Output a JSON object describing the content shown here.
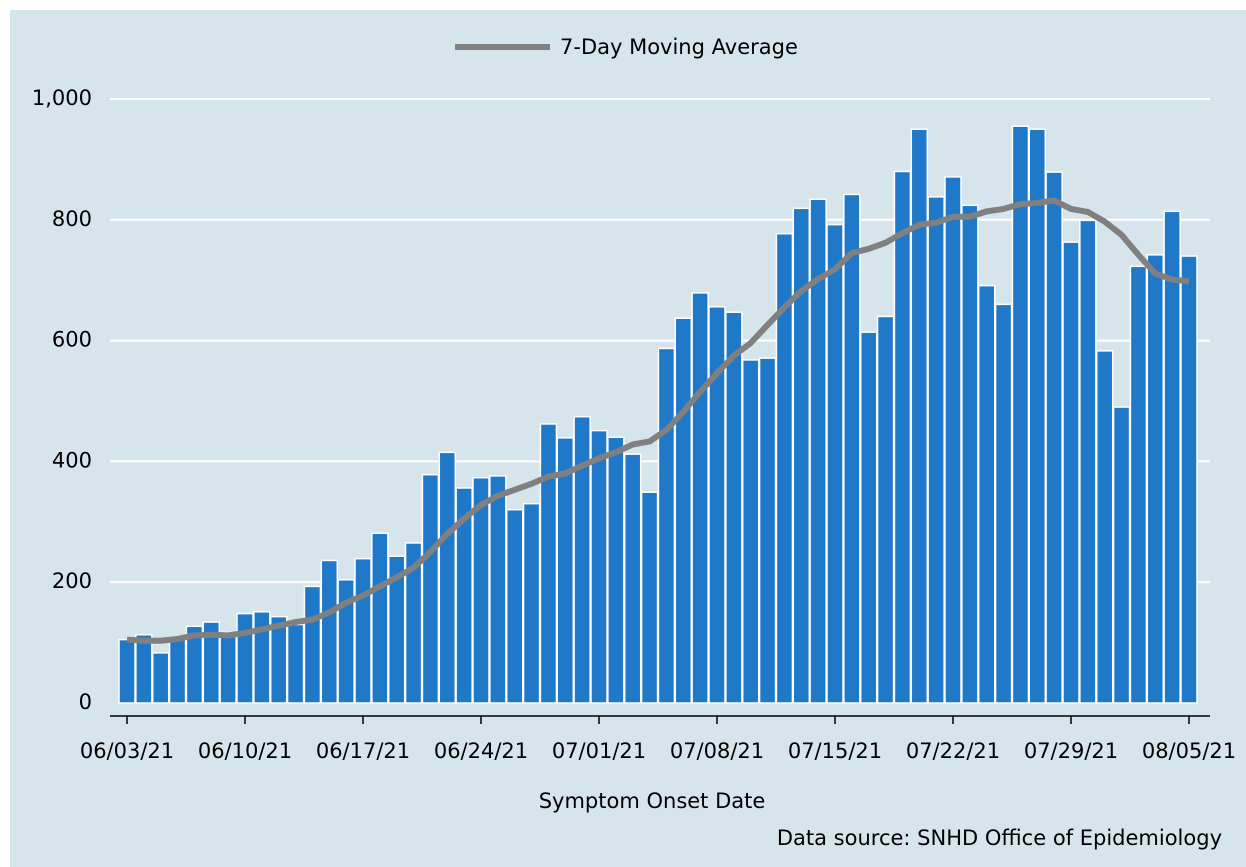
{
  "chart_data": {
    "type": "bar",
    "categories": [
      "06/03/21",
      null,
      null,
      null,
      null,
      null,
      null,
      "06/10/21",
      null,
      null,
      null,
      null,
      null,
      null,
      "06/17/21",
      null,
      null,
      null,
      null,
      null,
      null,
      "06/24/21",
      null,
      null,
      null,
      null,
      null,
      null,
      "07/01/21",
      null,
      null,
      null,
      null,
      null,
      null,
      "07/08/21",
      null,
      null,
      null,
      null,
      null,
      null,
      "07/15/21",
      null,
      null,
      null,
      null,
      null,
      null,
      "07/22/21",
      null,
      null,
      null,
      null,
      null,
      null,
      "07/29/21",
      null,
      null,
      null,
      null,
      null,
      null,
      "08/05/21"
    ],
    "series": [
      {
        "type": "bar",
        "color": "#1f78c8",
        "values": [
          105,
          113,
          83,
          105,
          127,
          134,
          117,
          148,
          151,
          143,
          130,
          193,
          236,
          204,
          239,
          281,
          243,
          265,
          378,
          415,
          356,
          373,
          376,
          320,
          330,
          462,
          439,
          474,
          451,
          440,
          412,
          349,
          587,
          637,
          679,
          656,
          647,
          568,
          571,
          777,
          819,
          834,
          792,
          842,
          614,
          640,
          880,
          950,
          838,
          871,
          824,
          691,
          660,
          955,
          950,
          879,
          763,
          799,
          583,
          490,
          723,
          742,
          814,
          740
        ]
      },
      {
        "type": "line",
        "name": "7-Day Moving Average",
        "color": "#808080",
        "values": [
          105,
          103,
          103,
          106,
          112,
          113,
          112,
          116,
          122,
          128,
          134,
          138,
          150,
          166,
          178,
          193,
          208,
          224,
          250,
          280,
          305,
          328,
          343,
          353,
          363,
          375,
          380,
          393,
          405,
          415,
          428,
          433,
          452,
          482,
          515,
          546,
          575,
          596,
          626,
          655,
          682,
          702,
          718,
          745,
          752,
          762,
          778,
          792,
          795,
          805,
          805,
          814,
          818,
          826,
          828,
          832,
          818,
          813,
          797,
          775,
          742,
          711,
          701,
          698
        ]
      }
    ],
    "ylim": [
      0,
      1000
    ],
    "yticks": [
      0,
      200,
      400,
      600,
      800,
      {
        "value": 1000,
        "label": "1,000"
      }
    ],
    "grid": true,
    "legend": "top",
    "x_label": "Symptom Onset Date",
    "source": "Data source: SNHD Office of Epidemiology"
  }
}
